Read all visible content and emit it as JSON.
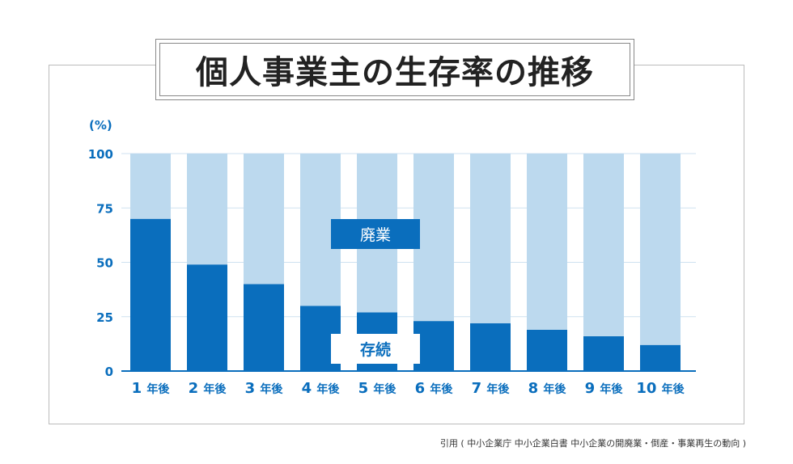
{
  "chart_data": {
    "type": "bar",
    "stacked": true,
    "title": "個人事業主の生存率の推移",
    "ylabel": "(%)",
    "ylim": [
      0,
      100
    ],
    "yticks": [
      0,
      25,
      50,
      75,
      100
    ],
    "categories": [
      "1",
      "2",
      "3",
      "4",
      "5",
      "6",
      "7",
      "8",
      "9",
      "10"
    ],
    "category_suffix": "年後",
    "series": [
      {
        "name": "存続",
        "color": "#0a6ebd",
        "values": [
          70,
          49,
          40,
          30,
          27,
          23,
          22,
          19,
          16,
          12
        ]
      },
      {
        "name": "廃業",
        "color": "#bcd9ee",
        "values": [
          30,
          51,
          60,
          70,
          73,
          77,
          78,
          81,
          84,
          88
        ]
      }
    ],
    "grid": true
  },
  "caption": "引用 ( 中小企業庁  中小企業白書 中小企業の開廃業・倒産・事業再生の動向 )"
}
